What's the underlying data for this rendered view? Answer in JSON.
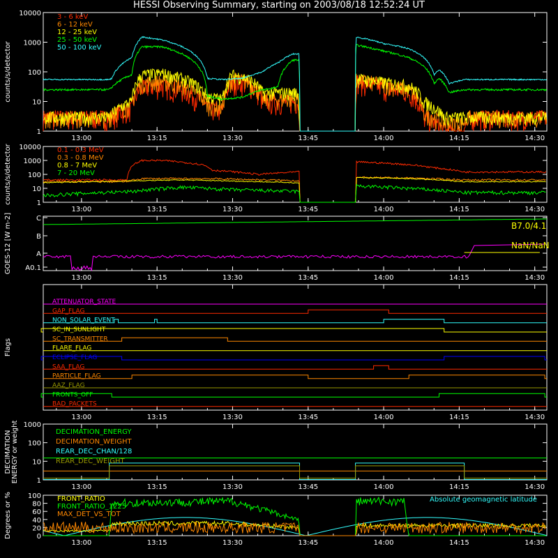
{
  "title": "HESSI Observing Summary, starting on 2003/08/18 12:52:24 UT",
  "colors": {
    "background": "#000000",
    "axes": "#ffffff",
    "red": "#ff2a00",
    "orange": "#ff8800",
    "yellow": "#ffff00",
    "green": "#00ff00",
    "cyan": "#33ffff",
    "magenta": "#ff00ff",
    "blue": "#0000ff"
  },
  "time_axis": {
    "start_minutes": 772.4,
    "end_minutes": 872.4,
    "tick_labels": [
      "13:00",
      "13:15",
      "13:30",
      "13:45",
      "14:00",
      "14:15",
      "14:30"
    ],
    "tick_minutes": [
      780,
      795,
      810,
      825,
      840,
      855,
      870
    ]
  },
  "chart_data": [
    {
      "type": "line",
      "id": "panel1",
      "yscale": "log",
      "ylabel": "counts/s/detector",
      "ylim": [
        1,
        10000
      ],
      "yticks": [
        "1",
        "10",
        "100",
        "1000",
        "10000"
      ],
      "series": [
        {
          "name": "3 - 6 keV",
          "color": "#ff2a00"
        },
        {
          "name": "6 - 12 keV",
          "color": "#ff8800"
        },
        {
          "name": "12 - 25 keV",
          "color": "#ffff00"
        },
        {
          "name": "25 - 50 keV",
          "color": "#00ff00"
        },
        {
          "name": "50 - 100 keV",
          "color": "#33ffff"
        }
      ]
    },
    {
      "type": "line",
      "id": "panel2",
      "yscale": "log",
      "ylabel": "counts/s/detector",
      "ylim": [
        1,
        10000
      ],
      "yticks": [
        "1",
        "10",
        "100",
        "1000",
        "10000"
      ],
      "series": [
        {
          "name": "0.1 - 0.3 MeV",
          "color": "#ff2a00"
        },
        {
          "name": "0.3 - 0.8 MeV",
          "color": "#ff8800"
        },
        {
          "name": "0.8 - 7 MeV",
          "color": "#ffff00"
        },
        {
          "name": "7 - 20 MeV",
          "color": "#00ff00"
        }
      ]
    },
    {
      "type": "line",
      "id": "panel3",
      "ylabel": "GOES-12 [W m-2]",
      "yticks": [
        "C",
        "B",
        "A",
        "A0.1"
      ],
      "annotations": [
        "B7.0/4.1",
        "NaN/NaN"
      ]
    },
    {
      "type": "line",
      "id": "panel4",
      "ylabel": "Flags",
      "series": [
        {
          "name": "ATTENUATOR_STATE",
          "color": "#ff00ff"
        },
        {
          "name": "GAP_FLAG",
          "color": "#ff2a00"
        },
        {
          "name": "NON_SOLAR_EVENT",
          "color": "#33ffff"
        },
        {
          "name": "SC_IN_SUNLIGHT",
          "color": "#ffff00"
        },
        {
          "name": "SC_TRANSMITTER",
          "color": "#ff8800"
        },
        {
          "name": "FLARE_FLAG",
          "color": "#ffff00"
        },
        {
          "name": "ECLIPSE_FLAG",
          "color": "#0000ff"
        },
        {
          "name": "SAA_FLAG",
          "color": "#ff2a00"
        },
        {
          "name": "PARTICLE_FLAG",
          "color": "#ff8800"
        },
        {
          "name": "AAZ_FLAG",
          "color": "#999900"
        },
        {
          "name": "FRONTS_OFF",
          "color": "#00ff00"
        },
        {
          "name": "BAD_PACKETS",
          "color": "#ff2a00"
        }
      ]
    },
    {
      "type": "line",
      "id": "panel5",
      "yscale": "log",
      "ylabel": [
        "DECIMATION",
        "ENERGY or weight"
      ],
      "ylim": [
        1,
        1000
      ],
      "yticks": [
        "1",
        "10",
        "100",
        "1000"
      ],
      "series": [
        {
          "name": "DECIMATION_ENERGY",
          "color": "#00ff00"
        },
        {
          "name": "DECIMATION_WEIGHT",
          "color": "#ff8800"
        },
        {
          "name": "REAR_DEC_CHAN/128",
          "color": "#33ffff"
        },
        {
          "name": "REAR_DEC_WEIGHT",
          "color": "#999900"
        }
      ]
    },
    {
      "type": "line",
      "id": "panel6",
      "ylabel": "Degrees or %",
      "ylim": [
        0,
        100
      ],
      "yticks": [
        "0",
        "20",
        "40",
        "60",
        "80",
        "100"
      ],
      "annotation": "Absolute geomagnetic latitude",
      "series": [
        {
          "name": "FRONT_RATIO",
          "color": "#ffff00"
        },
        {
          "name": "FRONT_RATIO_1225",
          "color": "#00ff00"
        },
        {
          "name": "MAX_DET_VS_TOT",
          "color": "#ff8800"
        }
      ]
    }
  ]
}
